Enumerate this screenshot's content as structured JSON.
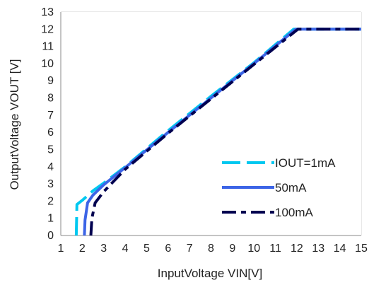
{
  "chart_data": {
    "type": "line",
    "xlabel": "InputVoltage VIN[V]",
    "ylabel": "OutputVoltage VOUT [V]",
    "xlim": [
      1,
      15
    ],
    "ylim": [
      0,
      13
    ],
    "xticks": [
      1,
      2,
      3,
      4,
      5,
      6,
      7,
      8,
      9,
      10,
      11,
      12,
      13,
      14,
      15
    ],
    "yticks": [
      0,
      1,
      2,
      3,
      4,
      5,
      6,
      7,
      8,
      9,
      10,
      11,
      12,
      13
    ],
    "grid": true,
    "legend_position": "bottom-right",
    "series": [
      {
        "name": "IOUT=1mA",
        "color": "#00c8f0",
        "dash": "long-dash",
        "points": [
          [
            1.72,
            0
          ],
          [
            1.75,
            1.8
          ],
          [
            2.0,
            2.05
          ],
          [
            2.5,
            2.6
          ],
          [
            3.0,
            3.05
          ],
          [
            4.0,
            4.0
          ],
          [
            6.0,
            6.1
          ],
          [
            8.0,
            8.1
          ],
          [
            10.0,
            10.05
          ],
          [
            11.85,
            12.0
          ],
          [
            12.2,
            12.0
          ],
          [
            15.0,
            12.0
          ]
        ]
      },
      {
        "name": "50mA",
        "color": "#3c64e6",
        "dash": "solid",
        "points": [
          [
            2.1,
            0
          ],
          [
            2.13,
            0.9
          ],
          [
            2.25,
            1.9
          ],
          [
            2.5,
            2.35
          ],
          [
            3.0,
            2.95
          ],
          [
            4.0,
            3.95
          ],
          [
            6.0,
            6.0
          ],
          [
            8.0,
            8.0
          ],
          [
            10.0,
            10.0
          ],
          [
            11.95,
            12.0
          ],
          [
            12.2,
            12.0
          ],
          [
            15.0,
            12.0
          ]
        ]
      },
      {
        "name": "100mA",
        "color": "#000050",
        "dash": "dash-dot",
        "points": [
          [
            2.4,
            0
          ],
          [
            2.45,
            1.0
          ],
          [
            2.6,
            1.9
          ],
          [
            3.0,
            2.55
          ],
          [
            4.0,
            3.85
          ],
          [
            6.0,
            5.95
          ],
          [
            8.0,
            7.95
          ],
          [
            10.0,
            9.95
          ],
          [
            12.05,
            12.0
          ],
          [
            12.3,
            12.0
          ],
          [
            15.0,
            12.0
          ]
        ]
      }
    ]
  }
}
